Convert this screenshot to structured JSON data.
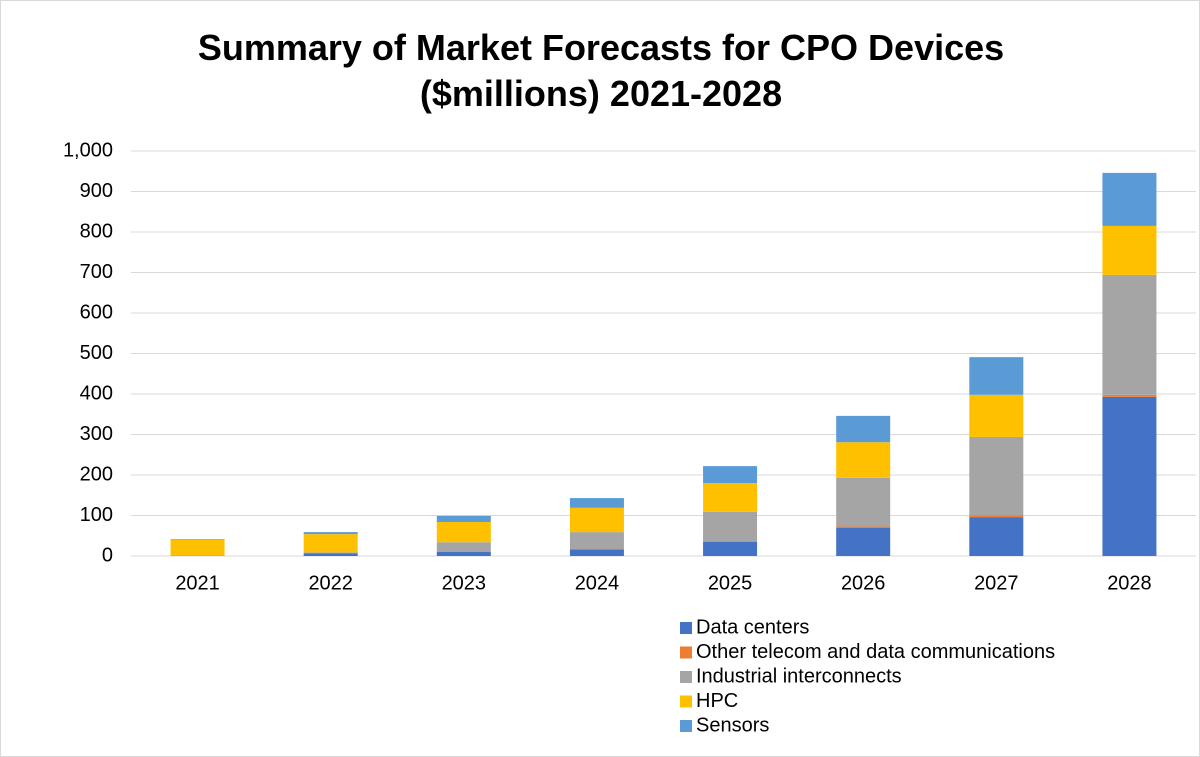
{
  "chart_data": {
    "type": "stacked-bar",
    "title": "Summary of Market Forecasts for CPO Devices ($millions) 2021-2028",
    "categories": [
      "2021",
      "2022",
      "2023",
      "2024",
      "2025",
      "2026",
      "2027",
      "2028"
    ],
    "series": [
      {
        "name": "Data centers",
        "color": "#4472c4",
        "values": [
          0,
          7,
          10,
          16,
          35,
          70,
          96,
          393
        ]
      },
      {
        "name": "Other telecom and data communications",
        "color": "#ed7d31",
        "values": [
          0,
          0,
          1,
          1,
          2,
          3,
          5,
          5
        ]
      },
      {
        "name": "Industrial interconnects",
        "color": "#a5a5a5",
        "values": [
          2,
          2,
          23,
          42,
          72,
          120,
          193,
          296
        ]
      },
      {
        "name": "HPC",
        "color": "#ffc000",
        "values": [
          39,
          45,
          50,
          60,
          71,
          88,
          104,
          121
        ]
      },
      {
        "name": "Sensors",
        "color": "#5b9bd5",
        "values": [
          1,
          5,
          15,
          24,
          42,
          65,
          93,
          131
        ]
      }
    ],
    "ylim": [
      0,
      1000
    ],
    "yticks": [
      0,
      100,
      200,
      300,
      400,
      500,
      600,
      700,
      800,
      900,
      {
        "value": 1000,
        "label": "1,000"
      }
    ],
    "grid": true,
    "legend": "bottom-right"
  }
}
